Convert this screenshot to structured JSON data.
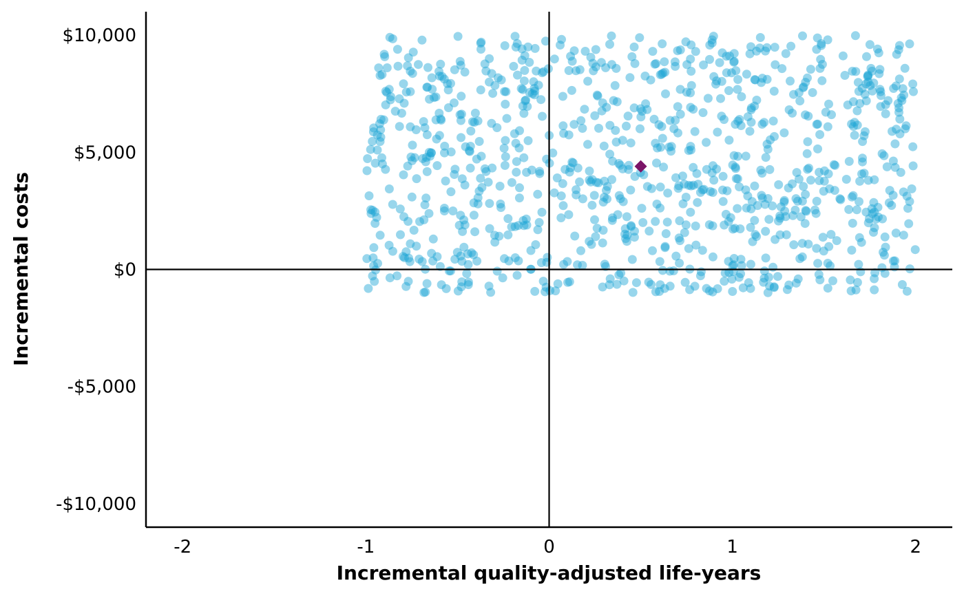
{
  "chart_data": {
    "type": "scatter",
    "xlabel": "Incremental quality-adjusted life-years",
    "ylabel": "Incremental costs",
    "xlim": [
      -2.2,
      2.2
    ],
    "ylim": [
      -11000,
      11000
    ],
    "x_ticks": [
      -2,
      -1,
      0,
      1,
      2
    ],
    "x_tick_labels": [
      "-2",
      "-1",
      "0",
      "1",
      "2"
    ],
    "y_ticks": [
      -10000,
      -5000,
      0,
      5000,
      10000
    ],
    "y_tick_labels": [
      "-$10,000",
      "-$5,000",
      "$0",
      "$5,000",
      "$10,000"
    ],
    "reference_lines": {
      "x": 0,
      "y": 0
    },
    "grid": false,
    "legend": "none",
    "simulation_cloud": {
      "n_points": 1000,
      "x_range": [
        -1,
        2
      ],
      "y_range": [
        -1000,
        10000
      ],
      "color": "#1aa3d4",
      "opacity": 0.45
    },
    "point_estimate": {
      "x": 0.5,
      "y": 4400,
      "color": "#7b1467",
      "marker": "diamond"
    }
  }
}
